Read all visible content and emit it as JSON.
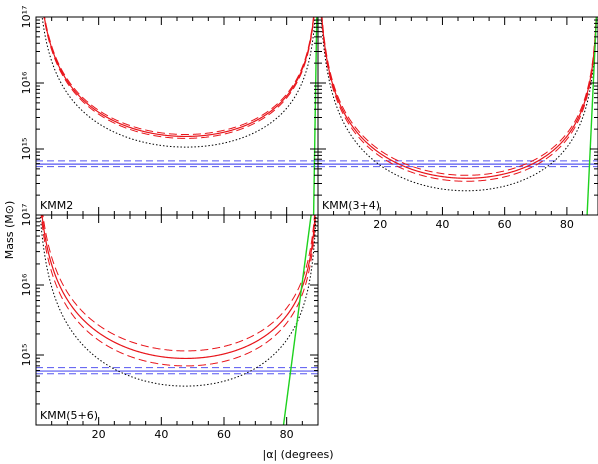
{
  "chart_data": {
    "type": "line",
    "xlabel": "|α| (degrees)",
    "ylabel": "Mass (M⊙)",
    "xlim": [
      0,
      90
    ],
    "ylim": [
      100000000000000.0,
      1e+17
    ],
    "yscale": "log",
    "x_ticks": [
      20,
      40,
      60,
      80
    ],
    "x_tick_labels": [
      "20",
      "40",
      "60",
      "80"
    ],
    "y_ticks": [
      1000000000000000.0,
      1e+16,
      1e+17
    ],
    "y_tick_labels_top": [
      "10¹⁵",
      "10¹⁶",
      "10¹⁷"
    ],
    "y_tick_labels_bottom": [
      "10¹⁵",
      "10¹⁶",
      "10¹⁷"
    ],
    "colors": {
      "red": "#e8141a",
      "black": "#000000",
      "blue": "#5656f0",
      "green": "#1ed21e"
    },
    "panels": [
      {
        "label": "KMM2",
        "mass_horizontal": {
          "center": 590000000000000.0,
          "low": 540000000000000.0,
          "high": 660000000000000.0
        },
        "red_curve": {
          "min_mass": 1550000000000000.0,
          "min_angle": 48,
          "exponent": 1.4,
          "band_factor": 1.07
        },
        "black_curve": {
          "min_mass": 1120000000000000.0,
          "min_angle": 55,
          "exponent": 1.35
        },
        "green_line": {
          "top_angle": 89.6,
          "bottom_angle": 88.6
        }
      },
      {
        "label": "KMM(3+4)",
        "mass_horizontal": {
          "center": 590000000000000.0,
          "low": 540000000000000.0,
          "high": 660000000000000.0
        },
        "red_curve": {
          "min_mass": 360000000000000.0,
          "min_angle": 48,
          "exponent": 1.45,
          "band_factor": 1.11
        },
        "black_curve": {
          "min_mass": 240000000000000.0,
          "min_angle": 53,
          "exponent": 1.5
        },
        "green_line": {
          "top_angle": 89.5,
          "bottom_angle": 86.5
        }
      },
      {
        "label": "KMM(5+6)",
        "mass_horizontal": {
          "center": 590000000000000.0,
          "low": 540000000000000.0,
          "high": 660000000000000.0
        },
        "red_curve": {
          "min_mass": 900000000000000.0,
          "min_angle": 45,
          "exponent": 1.4,
          "band_factor": 1.28
        },
        "black_curve": {
          "min_mass": 380000000000000.0,
          "min_angle": 55,
          "exponent": 1.5
        },
        "green_line": {
          "top_angle": 87.8,
          "bottom_angle": 79
        }
      }
    ]
  }
}
